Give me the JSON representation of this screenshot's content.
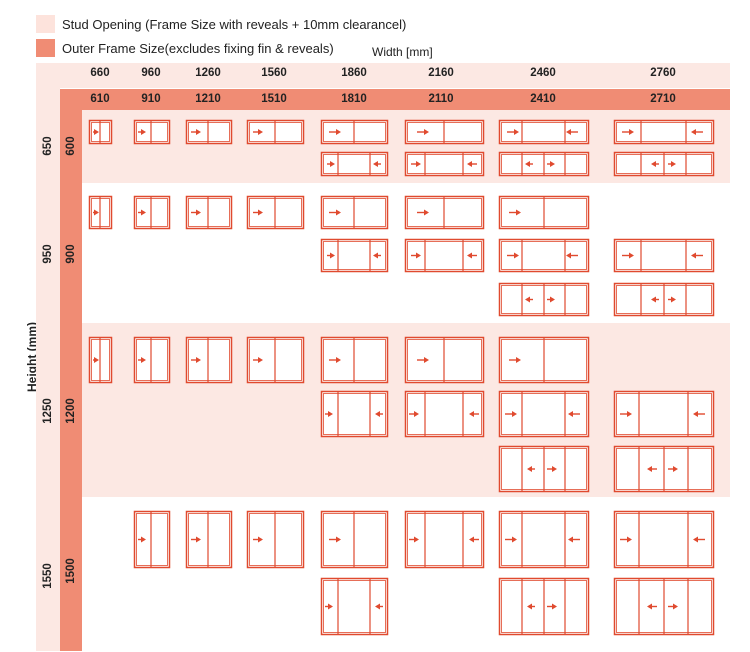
{
  "legend": {
    "stud_label": "Stud Opening (Frame Size with reveals + 10mm clearancel)",
    "outer_label": "Outer Frame Size(excludes fixing fin & reveals)",
    "stud_color": "#fde3dc",
    "outer_color": "#f08c74"
  },
  "axes": {
    "width_title": "Width [mm]",
    "height_title": "Height (mm)"
  },
  "columns": {
    "stud": [
      "660",
      "960",
      "1260",
      "1560",
      "1860",
      "2160",
      "2460",
      "2760"
    ],
    "outer": [
      "610",
      "910",
      "1210",
      "1510",
      "1810",
      "2110",
      "2410",
      "2710"
    ]
  },
  "rows": {
    "stud": [
      "650",
      "950",
      "1250",
      "1550"
    ],
    "outer": [
      "600",
      "900",
      "1200",
      "1500"
    ]
  },
  "colors": {
    "frame": "#e04a2f",
    "arrow": "#e04a2f",
    "band": "#fce8e3"
  }
}
